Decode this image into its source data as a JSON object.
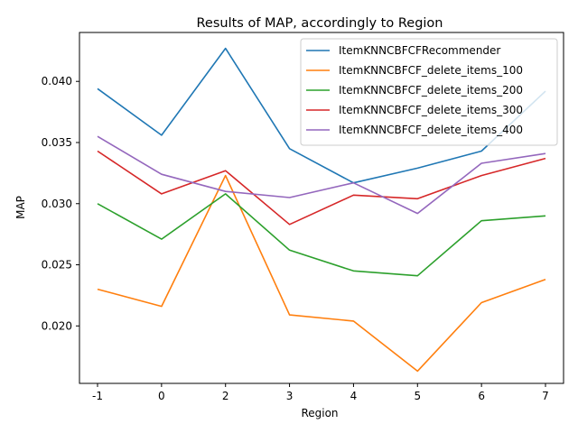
{
  "chart_data": {
    "type": "line",
    "title": "Results of MAP, accordingly to Region",
    "xlabel": "Region",
    "ylabel": "MAP",
    "categories": [
      "-1",
      "0",
      "2",
      "3",
      "4",
      "5",
      "6",
      "7"
    ],
    "ylim": [
      0.0153,
      0.044
    ],
    "yticks": [
      0.02,
      0.025,
      0.03,
      0.035,
      0.04
    ],
    "ytick_labels": [
      "0.020",
      "0.025",
      "0.030",
      "0.035",
      "0.040"
    ],
    "grid": false,
    "legend_position": "top-right",
    "series": [
      {
        "name": "ItemKNNCBFCFRecommender",
        "color": "#1f77b4",
        "values": [
          0.0394,
          0.0356,
          0.0427,
          0.0345,
          0.0317,
          0.0329,
          0.0343,
          0.0392
        ]
      },
      {
        "name": "ItemKNNCBFCF_delete_items_100",
        "color": "#ff7f0e",
        "values": [
          0.023,
          0.0216,
          0.0323,
          0.0209,
          0.0204,
          0.0163,
          0.0219,
          0.0238
        ]
      },
      {
        "name": "ItemKNNCBFCF_delete_items_200",
        "color": "#2ca02c",
        "values": [
          0.03,
          0.0271,
          0.0308,
          0.0262,
          0.0245,
          0.0241,
          0.0286,
          0.029
        ]
      },
      {
        "name": "ItemKNNCBFCF_delete_items_300",
        "color": "#d62728",
        "values": [
          0.0343,
          0.0308,
          0.0327,
          0.0283,
          0.0307,
          0.0304,
          0.0323,
          0.0337
        ]
      },
      {
        "name": "ItemKNNCBFCF_delete_items_400",
        "color": "#9467bd",
        "values": [
          0.0355,
          0.0324,
          0.031,
          0.0305,
          0.0317,
          0.0292,
          0.0333,
          0.0341
        ]
      }
    ]
  }
}
